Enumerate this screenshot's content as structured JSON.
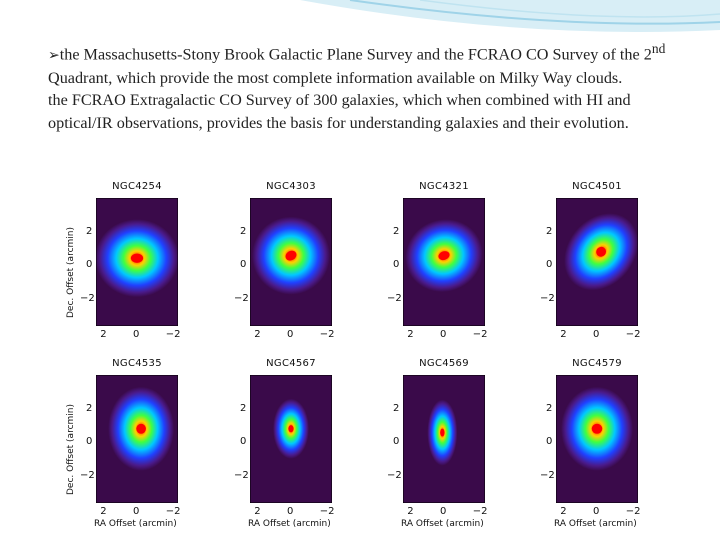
{
  "slide": {
    "bullet_icon": "arrow-bullet-icon",
    "p1_a": "the Massachusetts-Stony Brook Galactic Plane Survey and the FCRAO CO Survey of the 2",
    "p1_sup": "nd",
    "p1_b": " Quadrant, which provide the most complete information available on Milky Way clouds.",
    "p2": "the FCRAO Extragalactic CO Survey of 300 galaxies, which when combined with HI and optical/IR observations, provides the basis for understanding galaxies and their evolution."
  },
  "figure": {
    "ylabel": "Dec. Offset (arcmin)",
    "xlabel": "RA Offset (arcmin)",
    "ticks": [
      "2",
      "0",
      "−2"
    ],
    "panels": [
      {
        "name": "NGC4254"
      },
      {
        "name": "NGC4303"
      },
      {
        "name": "NGC4321"
      },
      {
        "name": "NGC4501"
      },
      {
        "name": "NGC4535"
      },
      {
        "name": "NGC4567"
      },
      {
        "name": "NGC4569"
      },
      {
        "name": "NGC4579"
      }
    ]
  },
  "colors": {
    "background_map": "#3a0a4a",
    "swoosh": "#9fd3e8"
  }
}
